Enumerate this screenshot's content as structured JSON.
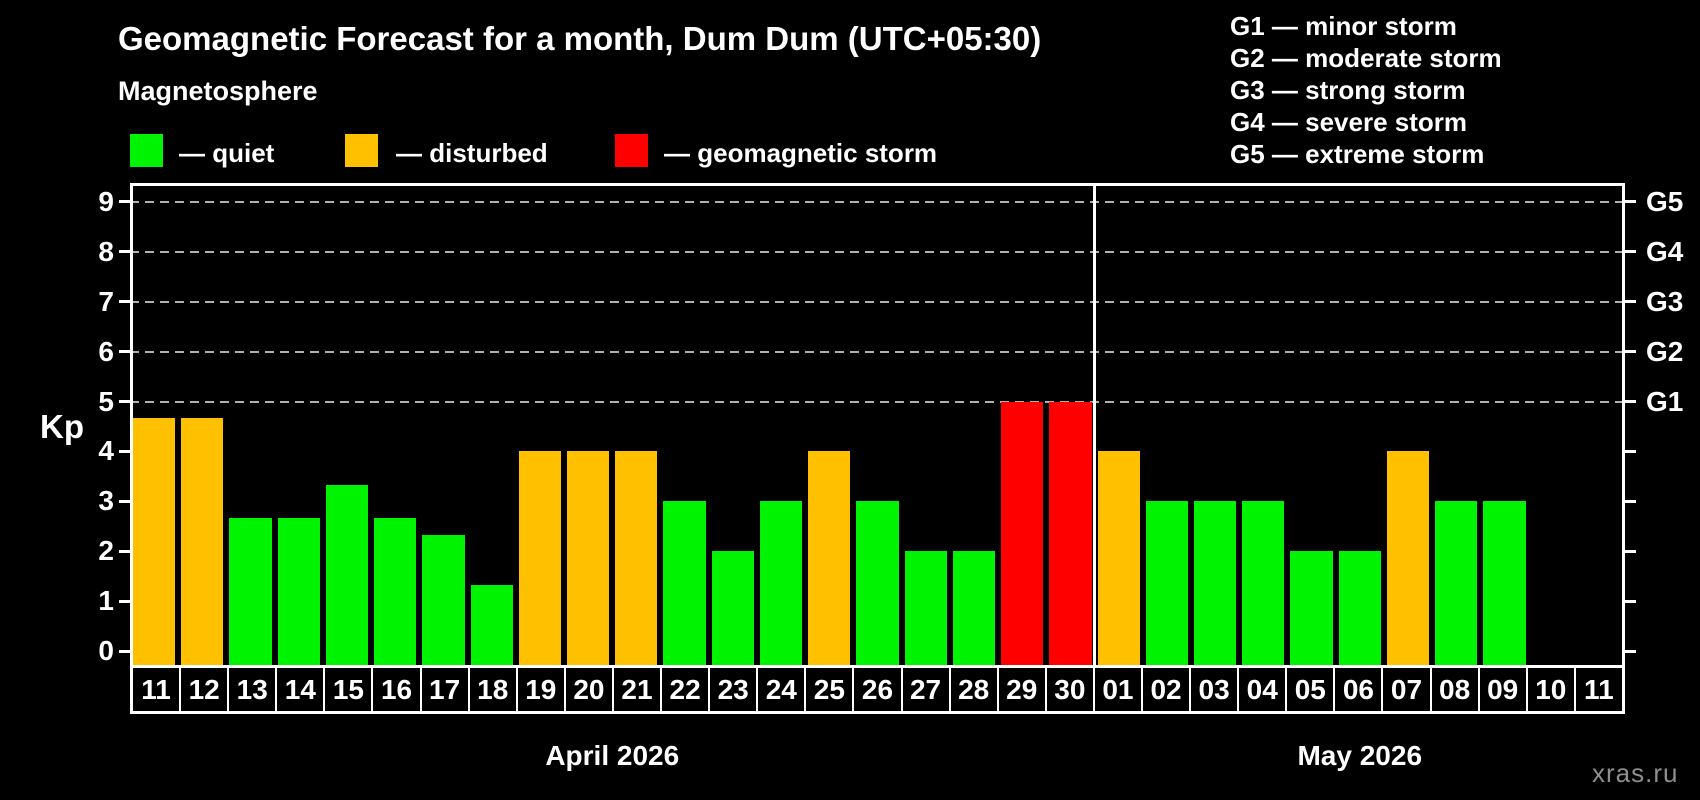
{
  "title": "Geomagnetic Forecast for a month, Dum Dum (UTC+05:30)",
  "subtitle": "Magnetosphere",
  "legend": [
    {
      "key": "quiet",
      "label": "— quiet",
      "color": "#00f300"
    },
    {
      "key": "disturbed",
      "label": "— disturbed",
      "color": "#ffc000"
    },
    {
      "key": "storm",
      "label": "— geomagnetic storm",
      "color": "#ff0000"
    }
  ],
  "storm_scale": [
    {
      "label": "G1 — minor storm"
    },
    {
      "label": "G2 — moderate storm"
    },
    {
      "label": "G3 — strong storm"
    },
    {
      "label": "G4 — severe storm"
    },
    {
      "label": "G5 — extreme storm"
    }
  ],
  "watermark": "xras.ru",
  "chart_data": {
    "type": "bar",
    "title": "Geomagnetic Forecast for a month, Dum Dum (UTC+05:30)",
    "ylabel": "Kp",
    "ylim": [
      0,
      9
    ],
    "y_ticks": [
      0,
      1,
      2,
      3,
      4,
      5,
      6,
      7,
      8,
      9
    ],
    "gridlines": [
      5,
      6,
      7,
      8,
      9
    ],
    "grid": "dashed",
    "right_axis_labels": [
      {
        "value": 5,
        "label": "G1"
      },
      {
        "value": 6,
        "label": "G2"
      },
      {
        "value": 7,
        "label": "G3"
      },
      {
        "value": 8,
        "label": "G4"
      },
      {
        "value": 9,
        "label": "G5"
      }
    ],
    "colors": {
      "quiet": "#00f300",
      "disturbed": "#ffc000",
      "storm": "#ff0000"
    },
    "groups": [
      {
        "month_label": "April 2026",
        "days": [
          {
            "date": "11",
            "value": 4.67,
            "status": "disturbed"
          },
          {
            "date": "12",
            "value": 4.67,
            "status": "disturbed"
          },
          {
            "date": "13",
            "value": 2.67,
            "status": "quiet"
          },
          {
            "date": "14",
            "value": 2.67,
            "status": "quiet"
          },
          {
            "date": "15",
            "value": 3.33,
            "status": "quiet"
          },
          {
            "date": "16",
            "value": 2.67,
            "status": "quiet"
          },
          {
            "date": "17",
            "value": 2.33,
            "status": "quiet"
          },
          {
            "date": "18",
            "value": 1.33,
            "status": "quiet"
          },
          {
            "date": "19",
            "value": 4,
            "status": "disturbed"
          },
          {
            "date": "20",
            "value": 4,
            "status": "disturbed"
          },
          {
            "date": "21",
            "value": 4,
            "status": "disturbed"
          },
          {
            "date": "22",
            "value": 3,
            "status": "quiet"
          },
          {
            "date": "23",
            "value": 2,
            "status": "quiet"
          },
          {
            "date": "24",
            "value": 3,
            "status": "quiet"
          },
          {
            "date": "25",
            "value": 4,
            "status": "disturbed"
          },
          {
            "date": "26",
            "value": 3,
            "status": "quiet"
          },
          {
            "date": "27",
            "value": 2,
            "status": "quiet"
          },
          {
            "date": "28",
            "value": 2,
            "status": "quiet"
          },
          {
            "date": "29",
            "value": 5,
            "status": "storm"
          },
          {
            "date": "30",
            "value": 5,
            "status": "storm"
          }
        ]
      },
      {
        "month_label": "May 2026",
        "days": [
          {
            "date": "01",
            "value": 4,
            "status": "disturbed"
          },
          {
            "date": "02",
            "value": 3,
            "status": "quiet"
          },
          {
            "date": "03",
            "value": 3,
            "status": "quiet"
          },
          {
            "date": "04",
            "value": 3,
            "status": "quiet"
          },
          {
            "date": "05",
            "value": 2,
            "status": "quiet"
          },
          {
            "date": "06",
            "value": 2,
            "status": "quiet"
          },
          {
            "date": "07",
            "value": 4,
            "status": "disturbed"
          },
          {
            "date": "08",
            "value": 3,
            "status": "quiet"
          },
          {
            "date": "09",
            "value": 3,
            "status": "quiet"
          },
          {
            "date": "10",
            "value": null,
            "status": null
          },
          {
            "date": "11",
            "value": null,
            "status": null
          }
        ]
      }
    ]
  }
}
